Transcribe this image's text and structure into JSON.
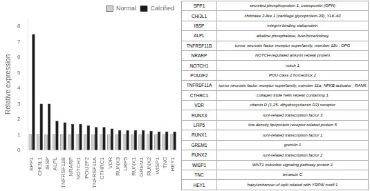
{
  "chart_data": {
    "type": "bar",
    "categories": [
      "SPP1",
      "CHI3L1",
      "IBSP",
      "ALPL",
      "TNFRSF11B",
      "NRARP",
      "NOTCH1",
      "POU2F2",
      "TNFRSF11A",
      "CTHRC1",
      "VDR",
      "RUNX3",
      "LRP5",
      "RUNX1",
      "GREM1",
      "RUNX2",
      "WISP1",
      "TNC",
      "HEY1"
    ],
    "series": [
      {
        "name": "Normal",
        "color": "#d0d0d0",
        "values": [
          1,
          1,
          1,
          1,
          1,
          1,
          1,
          1,
          1,
          1,
          1,
          1,
          1,
          1,
          1,
          1,
          1,
          1,
          1
        ]
      },
      {
        "name": "Calcified",
        "color": "#1a1a1a",
        "values": [
          7.5,
          3.0,
          3.0,
          1.9,
          1.8,
          1.7,
          1.7,
          1.6,
          1.5,
          1.5,
          1.4,
          1.3,
          1.3,
          1.3,
          1.3,
          1.25,
          1.2,
          1.2,
          1.2
        ]
      }
    ],
    "ylabel": "Relative expression",
    "ylim": [
      0,
      8.5
    ],
    "yticks": [
      0,
      1,
      2,
      3,
      4,
      5,
      6,
      7,
      8
    ],
    "grid": false,
    "legend": "upper right",
    "table": {
      "rows": [
        [
          "SPP1",
          "secreted phosphoprotein 1, osteopontin (OPN)"
        ],
        [
          "CHI3L1",
          "chitinase 3-like 1 (cartilage glycoprotein-39), YLK-40"
        ],
        [
          "IBSP",
          "integrin-binding sialoprotein"
        ],
        [
          "ALPL",
          "alkaline phosphatase, liver/bone/kidney"
        ],
        [
          "TNFRSF11B",
          "tumor necrosis factor receptor superfamily, member 11b , OPG"
        ],
        [
          "NRARP",
          "NOTCH-regulated ankyrin repeat protein"
        ],
        [
          "NOTCH1",
          "notch 1"
        ],
        [
          "POU2F2",
          "POU class 2 homeobox 2"
        ],
        [
          "TNFRSF11A",
          "tumor necrosis factor receptor superfamily, member 11a, NFKB activator , RANK"
        ],
        [
          "CTHRC1",
          "collagen triple helix repeat containing 1"
        ],
        [
          "VDR",
          "vitamin D (1,25- dihydroxyvitamin D3) receptor"
        ],
        [
          "RUNX3",
          "runt-related transcription factor 3"
        ],
        [
          "LRP5",
          "low density lipoprotein receptor-related protein 5"
        ],
        [
          "RUNX1",
          "runt-related transcription factor 1"
        ],
        [
          "GREM1",
          "gremlin 1"
        ],
        [
          "RUNX2",
          "runt-related transcription factor 2"
        ],
        [
          "WISP1",
          "WNT1 inducible signaling pathway protein 1"
        ],
        [
          "TNC",
          "tenascin C"
        ],
        [
          "HEY1",
          "hairy/enhancer-of-split related with YRPW motif 1"
        ]
      ]
    }
  }
}
